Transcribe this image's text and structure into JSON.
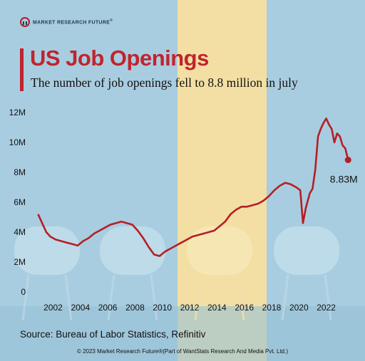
{
  "brand": {
    "name": "MARKET RESEARCH FUTURE",
    "mark": "®"
  },
  "header": {
    "title": "US Job Openings",
    "subtitle": "The number of job openings fell to 8.8 million in july"
  },
  "source": "Source: Bureau of Labor Statistics, Refinitiv",
  "footer": "© 2023 Market Research Future®(Part of WantStats Research And Media Pvt. Ltd.)",
  "colors": {
    "line": "#b41f26",
    "title": "#c0242e",
    "background": "#a9cde0",
    "highlight": "#f3dfa3"
  },
  "chart_data": {
    "type": "line",
    "title": "US Job Openings",
    "subtitle": "The number of job openings fell to 8.8 million in july",
    "xlabel": "",
    "ylabel": "",
    "xlim": [
      2000.2,
      2023.9
    ],
    "ylim": [
      0,
      12
    ],
    "x_ticks": [
      2002,
      2004,
      2006,
      2008,
      2010,
      2012,
      2014,
      2016,
      2018,
      2020,
      2022
    ],
    "y_ticks": [
      0,
      2,
      4,
      6,
      8,
      10,
      12
    ],
    "y_tick_labels": [
      "0",
      "2M",
      "4M",
      "6M",
      "8M",
      "10M",
      "12M"
    ],
    "grid": false,
    "annotation": {
      "x": 2023.6,
      "y": 8.83,
      "label": "8.83M"
    },
    "series": [
      {
        "units": "millions",
        "x": [
          2000.9,
          2001.2,
          2001.5,
          2001.8,
          2002.2,
          2002.6,
          2003.0,
          2003.4,
          2003.8,
          2004.2,
          2004.6,
          2005.0,
          2005.4,
          2005.8,
          2006.2,
          2006.6,
          2007.0,
          2007.4,
          2007.8,
          2008.2,
          2008.6,
          2009.0,
          2009.4,
          2009.8,
          2010.2,
          2010.6,
          2011.0,
          2011.4,
          2011.8,
          2012.2,
          2012.6,
          2013.0,
          2013.4,
          2013.8,
          2014.2,
          2014.6,
          2015.0,
          2015.4,
          2015.8,
          2016.2,
          2016.6,
          2017.0,
          2017.4,
          2017.8,
          2018.2,
          2018.6,
          2019.0,
          2019.4,
          2019.8,
          2020.1,
          2020.3,
          2020.5,
          2020.8,
          2021.0,
          2021.2,
          2021.4,
          2021.6,
          2021.8,
          2022.0,
          2022.2,
          2022.4,
          2022.6,
          2022.8,
          2023.0,
          2023.2,
          2023.4,
          2023.6
        ],
        "y": [
          5.2,
          4.6,
          4.0,
          3.7,
          3.5,
          3.4,
          3.3,
          3.2,
          3.1,
          3.4,
          3.6,
          3.9,
          4.1,
          4.3,
          4.5,
          4.6,
          4.7,
          4.6,
          4.5,
          4.1,
          3.6,
          3.0,
          2.5,
          2.4,
          2.7,
          2.9,
          3.1,
          3.3,
          3.5,
          3.7,
          3.8,
          3.9,
          4.0,
          4.1,
          4.4,
          4.7,
          5.2,
          5.5,
          5.7,
          5.7,
          5.8,
          5.9,
          6.1,
          6.4,
          6.8,
          7.1,
          7.3,
          7.2,
          7.0,
          6.8,
          4.6,
          5.6,
          6.6,
          6.9,
          8.2,
          10.4,
          10.9,
          11.3,
          11.6,
          11.2,
          10.9,
          10.0,
          10.6,
          10.4,
          9.8,
          9.6,
          8.83
        ]
      }
    ]
  }
}
